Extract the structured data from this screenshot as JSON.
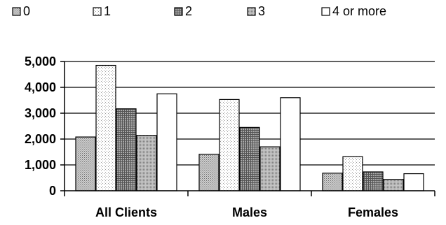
{
  "chart_data": {
    "type": "bar",
    "title": "",
    "xlabel": "",
    "ylabel": "",
    "categories": [
      "All Clients",
      "Males",
      "Females"
    ],
    "series": [
      {
        "name": "0",
        "values": [
          2080,
          1410,
          680
        ]
      },
      {
        "name": "1",
        "values": [
          4850,
          3530,
          1320
        ]
      },
      {
        "name": "2",
        "values": [
          3170,
          2450,
          730
        ]
      },
      {
        "name": "3",
        "values": [
          2140,
          1700,
          440
        ]
      },
      {
        "name": "4 or more",
        "values": [
          3750,
          3600,
          660
        ]
      }
    ],
    "ylim": [
      0,
      5000
    ],
    "yticks": [
      "0",
      "1,000",
      "2,000",
      "3,000",
      "4,000",
      "5,000"
    ],
    "grid": true,
    "legend_position": "top"
  },
  "style": {
    "pattern_colors": [
      "#b8b8b8",
      "#ffffff",
      "#7a7a7a",
      "#a0a0a0",
      "#ffffff"
    ]
  }
}
